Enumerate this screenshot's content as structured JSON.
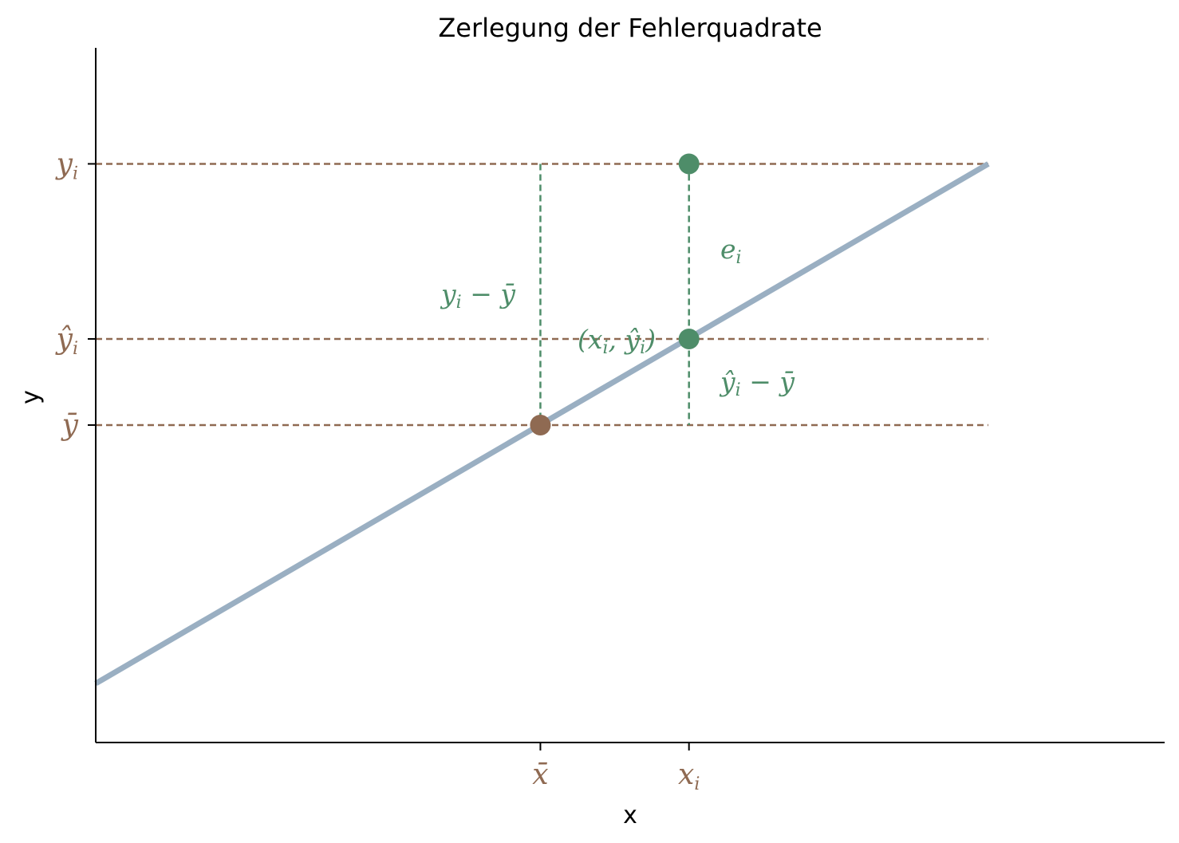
{
  "chart_data": {
    "type": "line",
    "title": "Zerlegung der Fehlerquadrate",
    "xlabel": "x",
    "ylabel": "y",
    "xlim": [
      0,
      10
    ],
    "ylim": [
      0,
      10
    ],
    "grid": false,
    "colors": {
      "regression_line": "#9aafc2",
      "brown": "#8f6a52",
      "green": "#4e8d69",
      "axis": "#000000"
    },
    "series": [
      {
        "x": [
          0,
          8.35
        ],
        "y": [
          0.85,
          8.33
        ]
      }
    ],
    "points": [
      {
        "id": "mean",
        "x": 4.16,
        "y": 4.57,
        "color": "#8f6a52"
      },
      {
        "id": "observed",
        "x": 5.55,
        "y": 8.33,
        "color": "#4e8d69"
      },
      {
        "id": "fitted",
        "x": 5.55,
        "y": 5.81,
        "color": "#4e8d69"
      }
    ],
    "xticks": [
      {
        "value": 4.16,
        "base": "x",
        "accent": "bar",
        "sub": ""
      },
      {
        "value": 5.55,
        "base": "x",
        "accent": "",
        "sub": "i"
      }
    ],
    "yticks": [
      {
        "value": 8.33,
        "base": "y",
        "accent": "",
        "sub": "i"
      },
      {
        "value": 5.81,
        "base": "y",
        "accent": "hat",
        "sub": "i"
      },
      {
        "value": 4.57,
        "base": "y",
        "accent": "bar",
        "sub": ""
      }
    ],
    "annotations": {
      "total_deviation": "y_i − ȳ",
      "residual": "e_i",
      "fitted_point": "(x_i, ŷ_i)",
      "explained_deviation": "ŷ_i − ȳ"
    }
  }
}
